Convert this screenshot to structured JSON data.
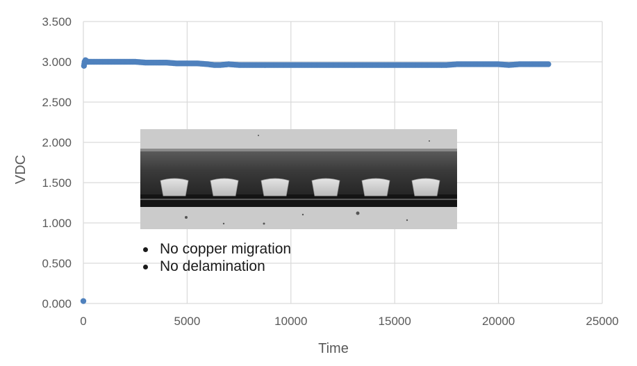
{
  "chart_data": {
    "type": "scatter",
    "title": "",
    "xlabel": "Time",
    "ylabel": "VDC",
    "xlim": [
      0,
      25000
    ],
    "ylim": [
      0,
      3.5
    ],
    "x_ticks": [
      "0",
      "5000",
      "10000",
      "15000",
      "20000",
      "25000"
    ],
    "y_ticks": [
      "0.000",
      "0.500",
      "1.000",
      "1.500",
      "2.000",
      "2.500",
      "3.000",
      "3.500"
    ],
    "grid": true,
    "marker_color": "#4f81bd",
    "series": [
      {
        "x": [
          0,
          30,
          60,
          100,
          150,
          200,
          400,
          700,
          1000,
          1500,
          2000,
          2500,
          3000,
          3300,
          3600,
          4000,
          4500,
          5000,
          5500,
          6000,
          6300,
          6600,
          7000,
          7500,
          8000,
          8500,
          9000,
          9500,
          10000,
          10500,
          11000,
          11500,
          12000,
          12500,
          13000,
          13500,
          14000,
          14500,
          15000,
          15500,
          16000,
          16500,
          17000,
          17500,
          18000,
          18500,
          19000,
          19500,
          20000,
          20500,
          21000,
          21500,
          22000,
          22400
        ],
        "y": [
          0.03,
          2.95,
          3.0,
          3.02,
          3.01,
          3.0,
          3.0,
          3.0,
          3.0,
          3.0,
          3.0,
          3.0,
          2.99,
          2.99,
          2.99,
          2.99,
          2.98,
          2.98,
          2.98,
          2.97,
          2.96,
          2.96,
          2.97,
          2.96,
          2.96,
          2.96,
          2.96,
          2.96,
          2.96,
          2.96,
          2.96,
          2.96,
          2.96,
          2.96,
          2.96,
          2.96,
          2.96,
          2.96,
          2.96,
          2.96,
          2.96,
          2.96,
          2.96,
          2.96,
          2.97,
          2.97,
          2.97,
          2.97,
          2.97,
          2.96,
          2.97,
          2.97,
          2.97,
          2.97
        ]
      }
    ]
  },
  "notes": {
    "items": [
      "No copper migration",
      "No delamination"
    ]
  },
  "image_inset": {
    "icon": "cross-section-micrograph",
    "colors": {
      "light": "#c9c9c9",
      "dark": "#161616",
      "mid": "#4a4a4a",
      "pad": "#d7d7d7"
    }
  }
}
